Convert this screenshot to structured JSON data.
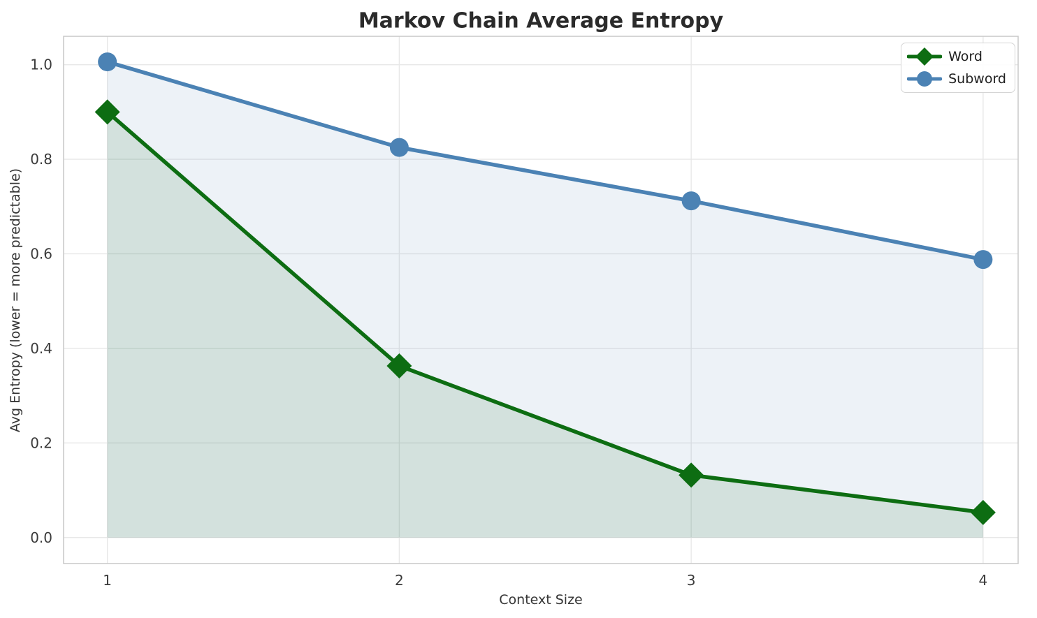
{
  "chart_data": {
    "type": "line",
    "title": "Markov Chain Average Entropy",
    "xlabel": "Context Size",
    "ylabel": "Avg Entropy (lower = more predictable)",
    "categories": [
      1,
      2,
      3,
      4
    ],
    "series": [
      {
        "name": "Word",
        "values": [
          0.9,
          0.363,
          0.132,
          0.053
        ],
        "color": "#0d6d12",
        "marker": "diamond",
        "fill_to_zero": true,
        "fill_opacity": 0.12
      },
      {
        "name": "Subword",
        "values": [
          1.006,
          0.825,
          0.712,
          0.588
        ],
        "color": "#4b82b4",
        "marker": "circle",
        "fill_to_zero": true,
        "fill_opacity": 0.1
      }
    ],
    "xtick_labels": [
      "1",
      "2",
      "3",
      "4"
    ],
    "yticks": [
      0.0,
      0.2,
      0.4,
      0.6,
      0.8,
      1.0
    ],
    "ytick_labels": [
      "0.0",
      "0.2",
      "0.4",
      "0.6",
      "0.8",
      "1.0"
    ],
    "xlim": [
      0.85,
      4.12
    ],
    "ylim": [
      -0.055,
      1.06
    ],
    "grid": true,
    "legend_position": "upper right",
    "colors": {
      "grid": "#e8e8e8",
      "spine": "#cbcbcb",
      "tick_text": "#3a3a3a",
      "title_text": "#2b2b2b",
      "legend_border": "#d5d5d5"
    }
  }
}
